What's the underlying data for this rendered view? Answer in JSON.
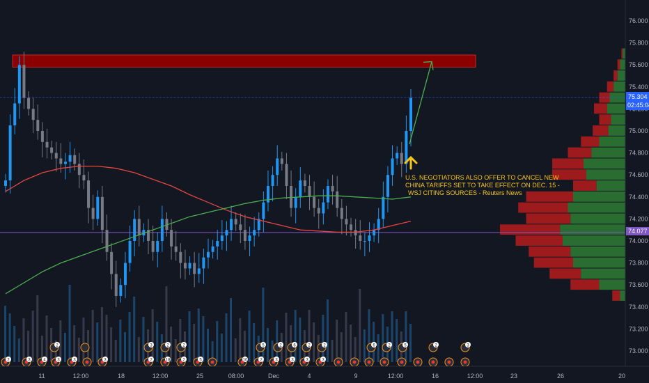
{
  "chart_data": {
    "type": "candlestick",
    "symbol_price_now": "75.304",
    "countdown": "02:45:04",
    "reference_price": "74.077",
    "ylim": [
      72.8,
      76.2
    ],
    "y_ticks": [
      "76.000",
      "75.800",
      "75.600",
      "75.400",
      "75.200",
      "75.000",
      "74.800",
      "74.600",
      "74.400",
      "74.200",
      "74.000",
      "73.800",
      "73.600",
      "73.400",
      "73.200",
      "73.000"
    ],
    "x_ticks": [
      "11",
      "12:00",
      "18",
      "12:00",
      "25",
      "08:00",
      "Dec",
      "4",
      "9",
      "12:00",
      "16",
      "12:00",
      "23",
      "26",
      "20"
    ],
    "annotation_lines": [
      "U.S. NEGOTIATORS ALSO OFFER TO CANCEL NEW",
      "CHINA TARIFFS SET TO TAKE EFFECT ON DEC. 15 -",
      "WSJ CITING SOURCES - Reuters News"
    ],
    "resistance_zone": [
      75.58,
      75.69
    ],
    "series": [
      {
        "name": "",
        "kind": "candles",
        "close": [
          74.55,
          75.05,
          75.25,
          75.6,
          75.3,
          75.2,
          75.1,
          75.0,
          74.9,
          74.85,
          74.8,
          74.75,
          74.7,
          74.72,
          74.78,
          74.7,
          74.6,
          74.55,
          74.3,
          74.2,
          74.4,
          74.1,
          73.9,
          73.7,
          73.5,
          73.6,
          73.8,
          74.0,
          74.2,
          74.05,
          74.1,
          74.0,
          73.9,
          74.0,
          74.2,
          74.1,
          73.95,
          73.9,
          73.8,
          73.75,
          73.8,
          73.7,
          73.75,
          73.85,
          73.9,
          73.95,
          74.0,
          74.05,
          74.1,
          74.2,
          74.15,
          74.1,
          74.0,
          74.05,
          74.1,
          74.2,
          74.35,
          74.5,
          74.6,
          74.75,
          74.7,
          74.5,
          74.3,
          74.4,
          74.55,
          74.5,
          74.4,
          74.3,
          74.25,
          74.35,
          74.5,
          74.45,
          74.3,
          74.2,
          74.15,
          74.1,
          74.05,
          74.0,
          74.0,
          74.05,
          74.1,
          74.2,
          74.4,
          74.6,
          74.75,
          74.8,
          74.7,
          75.0,
          75.3
        ]
      },
      {
        "name": "",
        "kind": "moving_average",
        "color": "#e5463f",
        "values": [
          74.45,
          74.55,
          74.62,
          74.66,
          74.68,
          74.68,
          74.66,
          74.62,
          74.56,
          74.5,
          74.42,
          74.35,
          74.28,
          74.22,
          74.18,
          74.14,
          74.1,
          74.09,
          74.08,
          74.08,
          74.1,
          74.14,
          74.18
        ]
      },
      {
        "name": "",
        "kind": "moving_average",
        "color": "#4caf50",
        "values": [
          73.52,
          73.62,
          73.72,
          73.8,
          73.86,
          73.92,
          73.98,
          74.04,
          74.1,
          74.16,
          74.22,
          74.26,
          74.3,
          74.34,
          74.37,
          74.39,
          74.4,
          74.41,
          74.41,
          74.4,
          74.39,
          74.38,
          74.4
        ]
      }
    ],
    "volume_profile": [
      {
        "price": 75.7,
        "buy": 2,
        "sell": 1
      },
      {
        "price": 75.6,
        "buy": 4,
        "sell": 2
      },
      {
        "price": 75.5,
        "buy": 6,
        "sell": 3
      },
      {
        "price": 75.4,
        "buy": 9,
        "sell": 5
      },
      {
        "price": 75.3,
        "buy": 12,
        "sell": 8
      },
      {
        "price": 75.2,
        "buy": 14,
        "sell": 10
      },
      {
        "price": 75.1,
        "buy": 11,
        "sell": 9
      },
      {
        "price": 75.0,
        "buy": 13,
        "sell": 12
      },
      {
        "price": 74.9,
        "buy": 20,
        "sell": 14
      },
      {
        "price": 74.8,
        "buy": 26,
        "sell": 18
      },
      {
        "price": 74.7,
        "buy": 32,
        "sell": 24
      },
      {
        "price": 74.6,
        "buy": 30,
        "sell": 26
      },
      {
        "price": 74.5,
        "buy": 22,
        "sell": 18
      },
      {
        "price": 74.4,
        "buy": 40,
        "sell": 36
      },
      {
        "price": 74.3,
        "buy": 44,
        "sell": 38
      },
      {
        "price": 74.2,
        "buy": 42,
        "sell": 34
      },
      {
        "price": 74.1,
        "buy": 50,
        "sell": 46
      },
      {
        "price": 74.0,
        "buy": 48,
        "sell": 36
      },
      {
        "price": 73.9,
        "buy": 42,
        "sell": 32
      },
      {
        "price": 73.8,
        "buy": 40,
        "sell": 30
      },
      {
        "price": 73.7,
        "buy": 34,
        "sell": 24
      },
      {
        "price": 73.6,
        "buy": 20,
        "sell": 22
      },
      {
        "price": 73.5,
        "buy": 4,
        "sell": 6
      }
    ],
    "events_row1": [
      "2",
      "",
      "3",
      "2",
      "2",
      "5",
      "2",
      "6",
      "2",
      "2",
      "6",
      "2",
      "5",
      "2",
      "3"
    ],
    "events_row2": [
      "2",
      "3",
      "4",
      "3",
      "3",
      "",
      "3",
      "2",
      "18",
      "2",
      "5",
      "",
      "10",
      "2",
      "3",
      "3",
      "3",
      "3"
    ]
  },
  "colors": {
    "background": "#131722",
    "up": "#2196f3",
    "down": "#787b86",
    "zone": "#8b0000",
    "ref_line": "#7e57c2",
    "price_line": "#2962ff",
    "arrow": "#4caf50",
    "annot": "#f5c518",
    "profile_buy": "#2e7d32",
    "profile_sell": "#b71c1c"
  }
}
